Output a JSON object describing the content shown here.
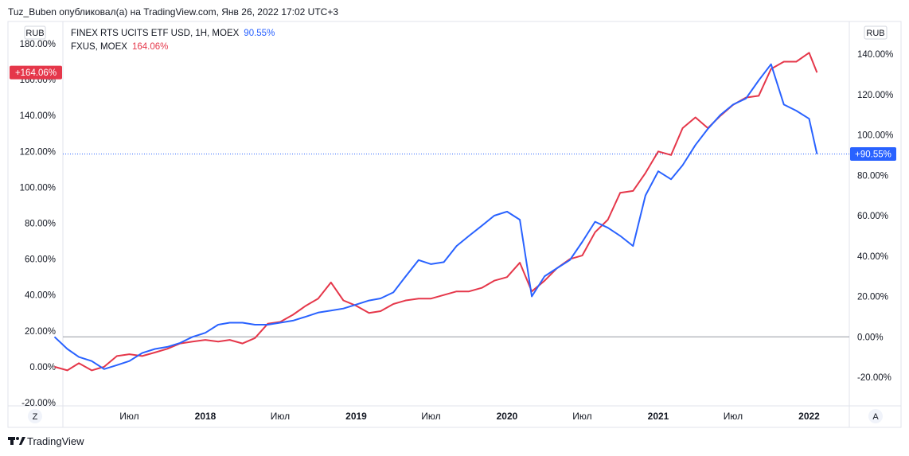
{
  "header": {
    "attribution": "Tuz_Buben опубликовал(а) на TradingView.com, Янв 26, 2022 17:02 UTC+3"
  },
  "footer": {
    "brand": "TradingView"
  },
  "controls": {
    "left_unit": "RUB",
    "right_unit": "RUB",
    "zoom_button": "Z",
    "auto_button": "A"
  },
  "colors": {
    "fxus": "#e5374a",
    "finex": "#2962ff",
    "zero_line": "#9598a1",
    "border": "#e0e3eb"
  },
  "chart_data": {
    "type": "line",
    "title": "",
    "x_tick_labels": [
      {
        "label": "Июл",
        "date": "2017-07-01",
        "bold": false
      },
      {
        "label": "2018",
        "date": "2018-01-01",
        "bold": true
      },
      {
        "label": "Июл",
        "date": "2018-07-01",
        "bold": false
      },
      {
        "label": "2019",
        "date": "2019-01-01",
        "bold": true
      },
      {
        "label": "Июл",
        "date": "2019-07-01",
        "bold": false
      },
      {
        "label": "2020",
        "date": "2020-01-01",
        "bold": true
      },
      {
        "label": "Июл",
        "date": "2020-07-01",
        "bold": false
      },
      {
        "label": "2021",
        "date": "2021-01-01",
        "bold": true
      },
      {
        "label": "Июл",
        "date": "2021-07-01",
        "bold": false
      },
      {
        "label": "2022",
        "date": "2022-01-01",
        "bold": true
      }
    ],
    "left_axis": {
      "unit": "RUB",
      "range": [
        -20,
        180
      ],
      "tick_labels": [
        "180.00%",
        "160.00%",
        "140.00%",
        "120.00%",
        "100.00%",
        "80.00%",
        "60.00%",
        "40.00%",
        "20.00%",
        "0.00%",
        "-20.00%"
      ],
      "tick_values": [
        180,
        160,
        140,
        120,
        100,
        80,
        60,
        40,
        20,
        0,
        -20
      ]
    },
    "right_axis": {
      "unit": "RUB",
      "range": [
        -20,
        140
      ],
      "tick_labels": [
        "140.00%",
        "120.00%",
        "100.00%",
        "80.00%",
        "60.00%",
        "40.00%",
        "20.00%",
        "0.00%",
        "-20.00%"
      ],
      "tick_values": [
        140,
        120,
        100,
        80,
        60,
        40,
        20,
        0,
        -20
      ]
    },
    "zero_line_value": 0,
    "series": [
      {
        "name": "FXUS, MOEX",
        "legend_value": "164.06%",
        "last_label": "+164.06%",
        "axis": "left",
        "color": "#e5374a",
        "points": [
          [
            "2017-01-01",
            0
          ],
          [
            "2017-02-01",
            -2
          ],
          [
            "2017-03-01",
            2
          ],
          [
            "2017-04-01",
            -2
          ],
          [
            "2017-05-01",
            0
          ],
          [
            "2017-06-01",
            6
          ],
          [
            "2017-07-01",
            7
          ],
          [
            "2017-08-01",
            6
          ],
          [
            "2017-09-01",
            8
          ],
          [
            "2017-10-01",
            10
          ],
          [
            "2017-11-01",
            13
          ],
          [
            "2017-12-01",
            14
          ],
          [
            "2018-01-01",
            15
          ],
          [
            "2018-02-01",
            14
          ],
          [
            "2018-03-01",
            15
          ],
          [
            "2018-04-01",
            13
          ],
          [
            "2018-05-01",
            16
          ],
          [
            "2018-06-01",
            24
          ],
          [
            "2018-07-01",
            25
          ],
          [
            "2018-08-01",
            29
          ],
          [
            "2018-09-01",
            34
          ],
          [
            "2018-10-01",
            38
          ],
          [
            "2018-11-01",
            47
          ],
          [
            "2018-12-01",
            37
          ],
          [
            "2019-01-01",
            34
          ],
          [
            "2019-02-01",
            30
          ],
          [
            "2019-03-01",
            31
          ],
          [
            "2019-04-01",
            35
          ],
          [
            "2019-05-01",
            37
          ],
          [
            "2019-06-01",
            38
          ],
          [
            "2019-07-01",
            38
          ],
          [
            "2019-08-01",
            40
          ],
          [
            "2019-09-01",
            42
          ],
          [
            "2019-10-01",
            42
          ],
          [
            "2019-11-01",
            44
          ],
          [
            "2019-12-01",
            48
          ],
          [
            "2020-01-01",
            50
          ],
          [
            "2020-02-01",
            58
          ],
          [
            "2020-03-01",
            42
          ],
          [
            "2020-04-01",
            48
          ],
          [
            "2020-05-01",
            55
          ],
          [
            "2020-06-01",
            60
          ],
          [
            "2020-07-01",
            62
          ],
          [
            "2020-08-01",
            75
          ],
          [
            "2020-09-01",
            82
          ],
          [
            "2020-10-01",
            97
          ],
          [
            "2020-11-01",
            98
          ],
          [
            "2020-12-01",
            108
          ],
          [
            "2021-01-01",
            120
          ],
          [
            "2021-02-01",
            118
          ],
          [
            "2021-03-01",
            133
          ],
          [
            "2021-04-01",
            139
          ],
          [
            "2021-05-01",
            133
          ],
          [
            "2021-06-01",
            140
          ],
          [
            "2021-07-01",
            146
          ],
          [
            "2021-08-01",
            150
          ],
          [
            "2021-09-01",
            151
          ],
          [
            "2021-10-01",
            166
          ],
          [
            "2021-11-01",
            170
          ],
          [
            "2021-12-01",
            170
          ],
          [
            "2022-01-01",
            175
          ],
          [
            "2022-01-20",
            164
          ]
        ]
      },
      {
        "name": "FINEX RTS UCITS ETF USD, 1H, MOEX",
        "legend_value": "90.55%",
        "last_label": "+90.55%",
        "axis": "right",
        "color": "#2962ff",
        "points": [
          [
            "2017-01-01",
            0
          ],
          [
            "2017-02-01",
            -6
          ],
          [
            "2017-03-01",
            -10
          ],
          [
            "2017-04-01",
            -12
          ],
          [
            "2017-05-01",
            -16
          ],
          [
            "2017-06-01",
            -14
          ],
          [
            "2017-07-01",
            -12
          ],
          [
            "2017-08-01",
            -8
          ],
          [
            "2017-09-01",
            -6
          ],
          [
            "2017-10-01",
            -5
          ],
          [
            "2017-11-01",
            -3
          ],
          [
            "2017-12-01",
            0
          ],
          [
            "2018-01-01",
            2
          ],
          [
            "2018-02-01",
            6
          ],
          [
            "2018-03-01",
            7
          ],
          [
            "2018-04-01",
            7
          ],
          [
            "2018-05-01",
            6
          ],
          [
            "2018-06-01",
            6
          ],
          [
            "2018-07-01",
            7
          ],
          [
            "2018-08-01",
            8
          ],
          [
            "2018-09-01",
            10
          ],
          [
            "2018-10-01",
            12
          ],
          [
            "2018-11-01",
            13
          ],
          [
            "2018-12-01",
            14
          ],
          [
            "2019-01-01",
            16
          ],
          [
            "2019-02-01",
            18
          ],
          [
            "2019-03-01",
            19
          ],
          [
            "2019-04-01",
            22
          ],
          [
            "2019-05-01",
            30
          ],
          [
            "2019-06-01",
            38
          ],
          [
            "2019-07-01",
            36
          ],
          [
            "2019-08-01",
            37
          ],
          [
            "2019-09-01",
            45
          ],
          [
            "2019-10-01",
            50
          ],
          [
            "2019-11-01",
            55
          ],
          [
            "2019-12-01",
            60
          ],
          [
            "2020-01-01",
            62
          ],
          [
            "2020-02-01",
            58
          ],
          [
            "2020-03-01",
            20
          ],
          [
            "2020-04-01",
            30
          ],
          [
            "2020-05-01",
            34
          ],
          [
            "2020-06-01",
            38
          ],
          [
            "2020-07-01",
            47
          ],
          [
            "2020-08-01",
            57
          ],
          [
            "2020-09-01",
            54
          ],
          [
            "2020-10-01",
            50
          ],
          [
            "2020-11-01",
            45
          ],
          [
            "2020-12-01",
            70
          ],
          [
            "2021-01-01",
            82
          ],
          [
            "2021-02-01",
            78
          ],
          [
            "2021-03-01",
            85
          ],
          [
            "2021-04-01",
            95
          ],
          [
            "2021-05-01",
            103
          ],
          [
            "2021-06-01",
            110
          ],
          [
            "2021-07-01",
            115
          ],
          [
            "2021-08-01",
            118
          ],
          [
            "2021-09-01",
            127
          ],
          [
            "2021-10-01",
            135
          ],
          [
            "2021-11-01",
            115
          ],
          [
            "2021-12-01",
            112
          ],
          [
            "2022-01-01",
            108
          ],
          [
            "2022-01-20",
            90.55
          ]
        ]
      }
    ]
  }
}
